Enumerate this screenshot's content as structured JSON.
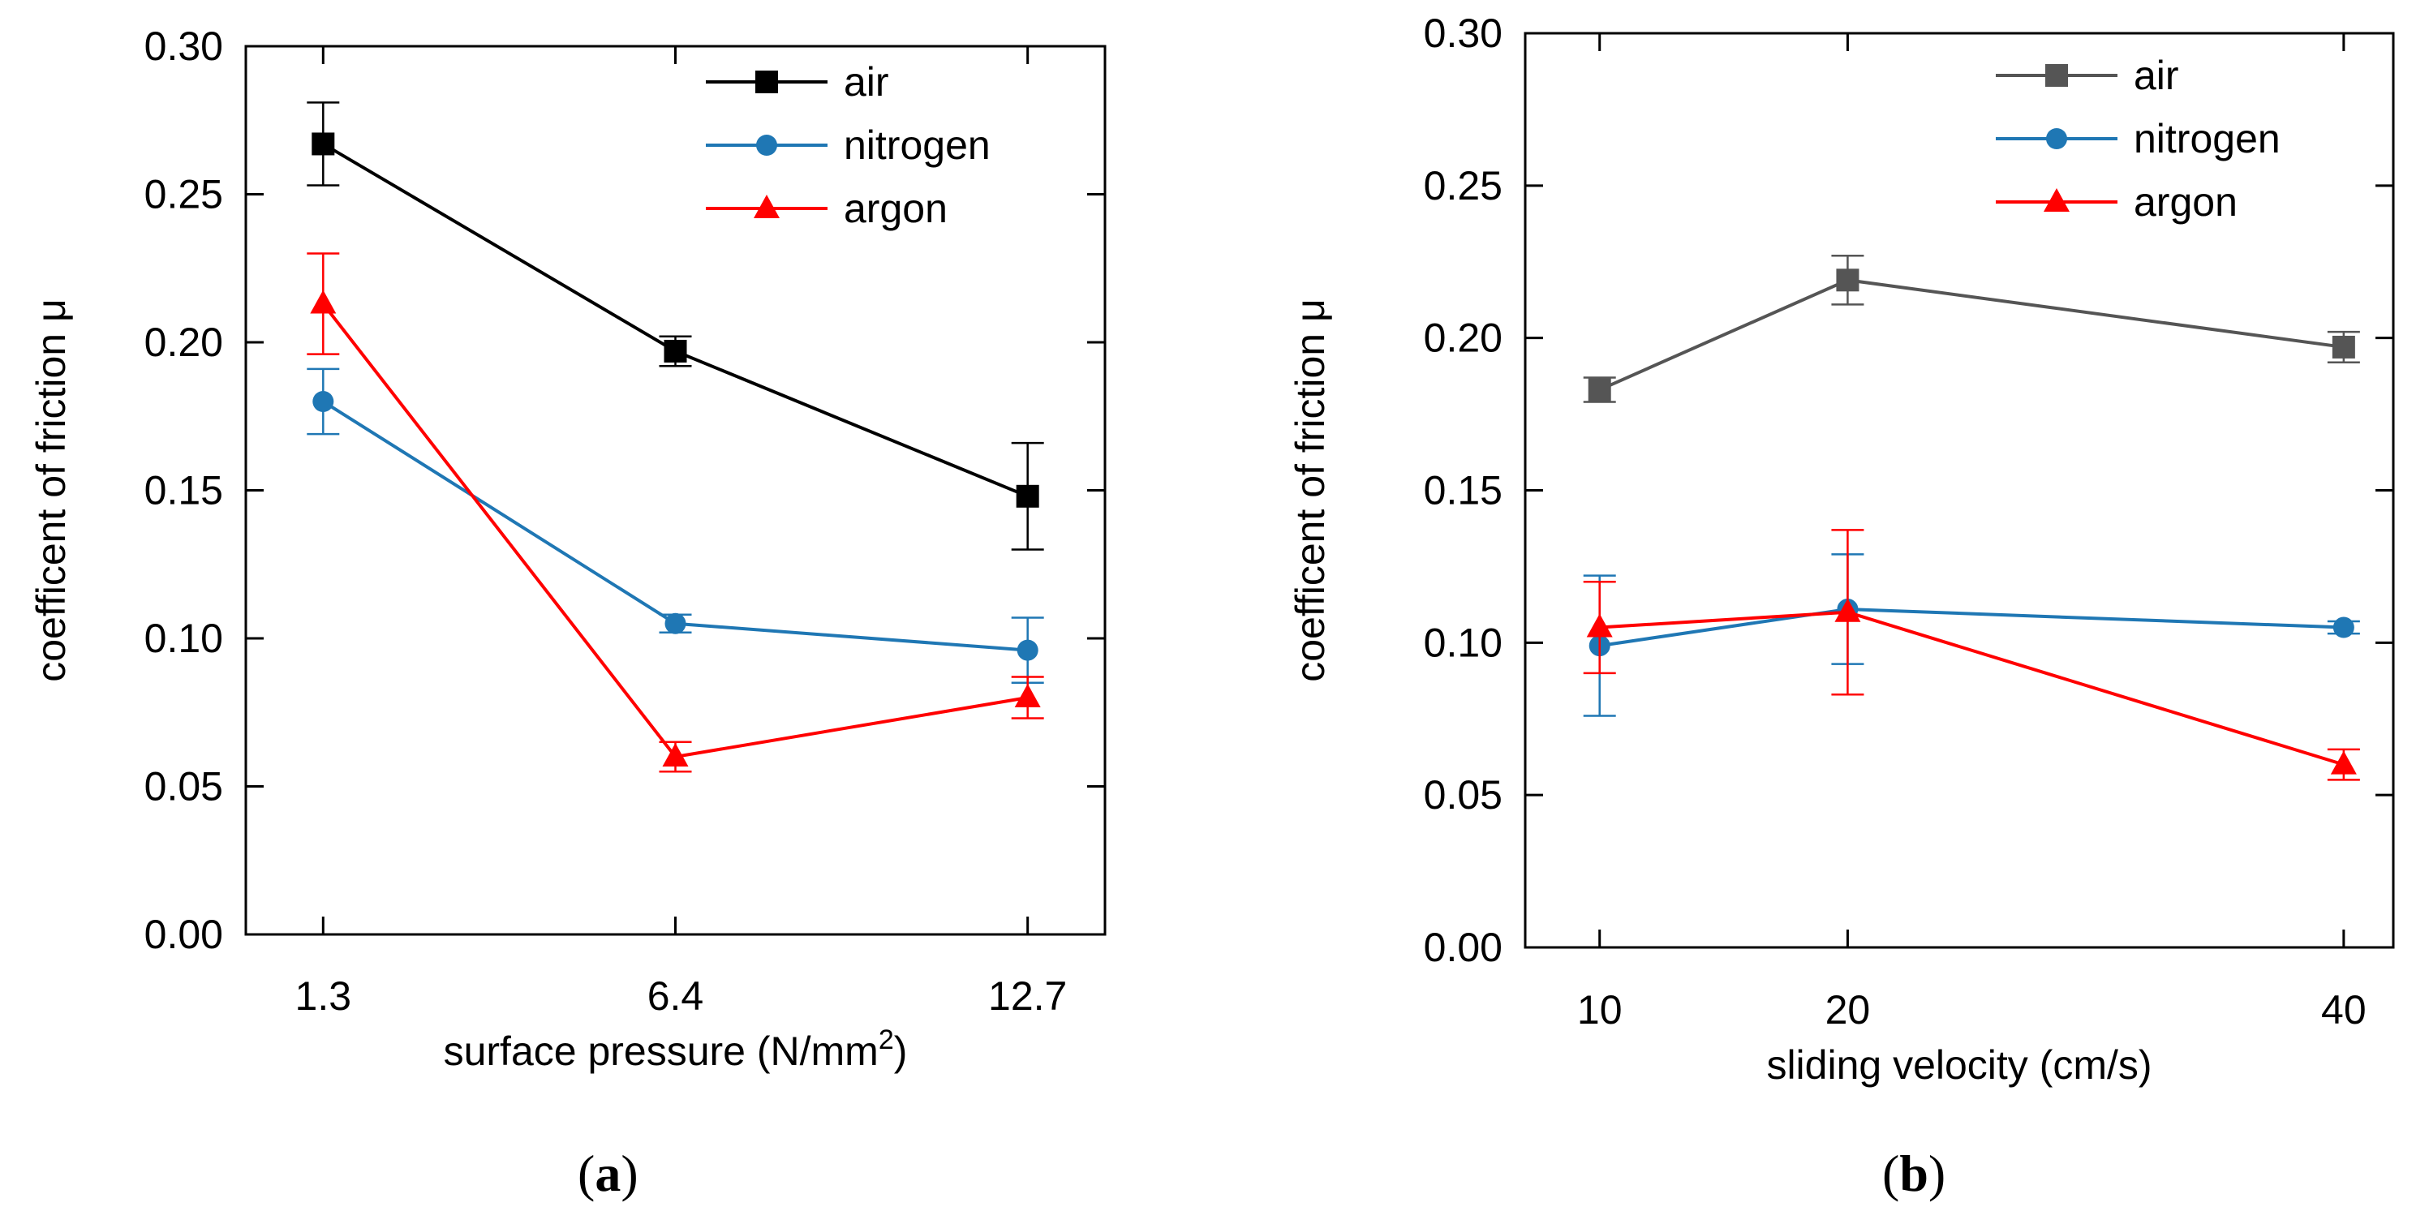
{
  "chart_data": [
    {
      "type": "line",
      "panel_label": "a",
      "xlabel": "surface pressure (N/mm",
      "xlabel_sup": "2",
      "xlabel_close": ")",
      "ylabel": "coefficent of friction μ",
      "categories": [
        "1.3",
        "6.4",
        "12.7"
      ],
      "ylim": [
        0,
        0.3
      ],
      "yticks": [
        "0.00",
        "0.05",
        "0.10",
        "0.15",
        "0.20",
        "0.25",
        "0.30"
      ],
      "legend_position": "top-right",
      "series": [
        {
          "name": "air",
          "color": "#000000",
          "marker": "square",
          "values": [
            0.267,
            0.197,
            0.148
          ],
          "errors": [
            0.014,
            0.005,
            0.018
          ]
        },
        {
          "name": "nitrogen",
          "color": "#1f77b4",
          "marker": "circle",
          "values": [
            0.18,
            0.105,
            0.096
          ],
          "errors": [
            0.011,
            0.003,
            0.011
          ]
        },
        {
          "name": "argon",
          "color": "#ff0000",
          "marker": "triangle",
          "values": [
            0.213,
            0.06,
            0.08
          ],
          "errors": [
            0.017,
            0.005,
            0.007
          ]
        }
      ]
    },
    {
      "type": "line",
      "panel_label": "b",
      "xlabel": "sliding velocity (cm/s)",
      "xlabel_sup": "",
      "xlabel_close": "",
      "ylabel": "coefficent of friction μ",
      "x": [
        10,
        20,
        40
      ],
      "xticks": [
        "10",
        "20",
        "40"
      ],
      "xlim": [
        7,
        42
      ],
      "ylim": [
        0,
        0.3
      ],
      "yticks": [
        "0.00",
        "0.05",
        "0.10",
        "0.15",
        "0.20",
        "0.25",
        "0.30"
      ],
      "legend_position": "top-right",
      "series": [
        {
          "name": "air",
          "color": "#555555",
          "marker": "square",
          "values": [
            0.183,
            0.219,
            0.197
          ],
          "errors": [
            0.004,
            0.008,
            0.005
          ]
        },
        {
          "name": "nitrogen",
          "color": "#1f77b4",
          "marker": "circle",
          "values": [
            0.099,
            0.111,
            0.105
          ],
          "errors": [
            0.023,
            0.018,
            0.002
          ]
        },
        {
          "name": "argon",
          "color": "#ff0000",
          "marker": "triangle",
          "values": [
            0.105,
            0.11,
            0.06
          ],
          "errors": [
            0.015,
            0.027,
            0.005
          ]
        }
      ]
    }
  ]
}
